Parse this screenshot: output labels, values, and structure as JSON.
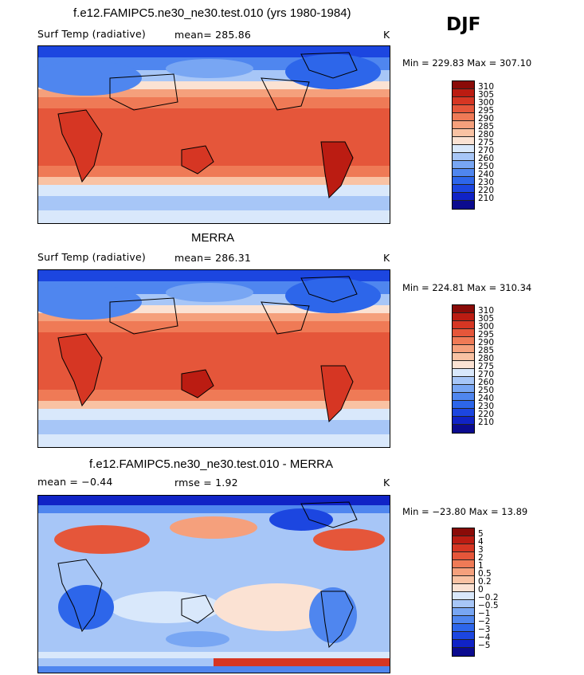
{
  "season": "DJF",
  "units": "K",
  "palette": [
    "#0b0b8f",
    "#1023c6",
    "#1c46e0",
    "#2d66ea",
    "#4f86ef",
    "#78a6f3",
    "#a7c6f7",
    "#d9e8fb",
    "#fbe2d3",
    "#f9c2a3",
    "#f5a07c",
    "#ef7a56",
    "#e5563a",
    "#d63623",
    "#bb1c12",
    "#8a0b08"
  ],
  "panels": [
    {
      "title": "f.e12.FAMIPC5.ne30_ne30.test.010 (yrs 1980-1984)",
      "variable": "Surf Temp (radiative)",
      "stat": "mean= 285.86",
      "minmax": "Min = 229.83 Max = 307.10",
      "ticks": [
        "310",
        "305",
        "300",
        "295",
        "290",
        "285",
        "280",
        "275",
        "270",
        "260",
        "250",
        "240",
        "230",
        "220",
        "210"
      ]
    },
    {
      "title": "MERRA",
      "variable": "Surf Temp (radiative)",
      "stat": "mean= 286.31",
      "minmax": "Min = 224.81 Max = 310.34",
      "ticks": [
        "310",
        "305",
        "300",
        "295",
        "290",
        "285",
        "280",
        "275",
        "270",
        "260",
        "250",
        "240",
        "230",
        "220",
        "210"
      ]
    },
    {
      "title": "f.e12.FAMIPC5.ne30_ne30.test.010 - MERRA",
      "variable": "mean =  −0.44",
      "stat": "rmse =   1.92",
      "minmax": "Min = −23.80 Max =  13.89",
      "ticks": [
        "5",
        "4",
        "3",
        "2",
        "1",
        "0.5",
        "0.2",
        "0",
        "−0.2",
        "−0.5",
        "−1",
        "−2",
        "−3",
        "−4",
        "−5"
      ]
    }
  ]
}
